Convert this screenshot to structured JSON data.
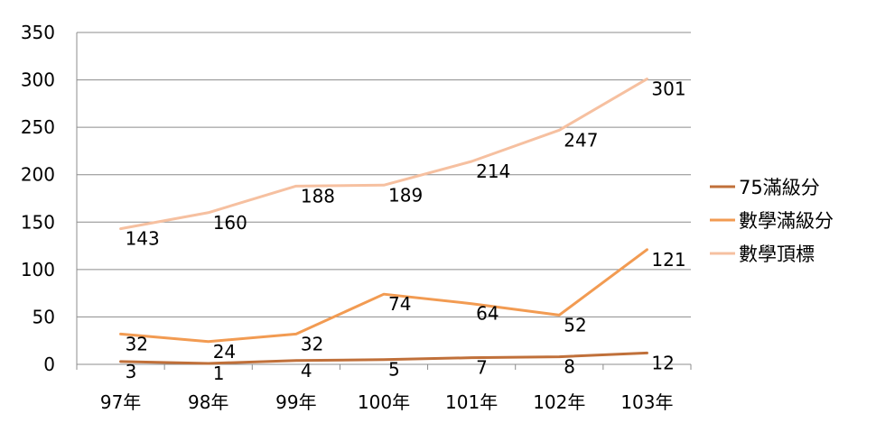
{
  "chart_data": {
    "type": "line",
    "categories": [
      "97年",
      "98年",
      "99年",
      "100年",
      "101年",
      "102年",
      "103年"
    ],
    "ylim": [
      0,
      350
    ],
    "yticks": [
      0,
      50,
      100,
      150,
      200,
      250,
      300,
      350
    ],
    "grid": true,
    "legend_position": "right",
    "series": [
      {
        "name": "75滿級分",
        "color": "#c0703a",
        "values": [
          3,
          1,
          4,
          5,
          7,
          8,
          12
        ]
      },
      {
        "name": "數學滿級分",
        "color": "#f29b52",
        "values": [
          32,
          24,
          32,
          74,
          64,
          52,
          121
        ]
      },
      {
        "name": "數學頂標",
        "color": "#f6c0a0",
        "values": [
          143,
          160,
          188,
          189,
          214,
          247,
          301
        ]
      }
    ]
  }
}
